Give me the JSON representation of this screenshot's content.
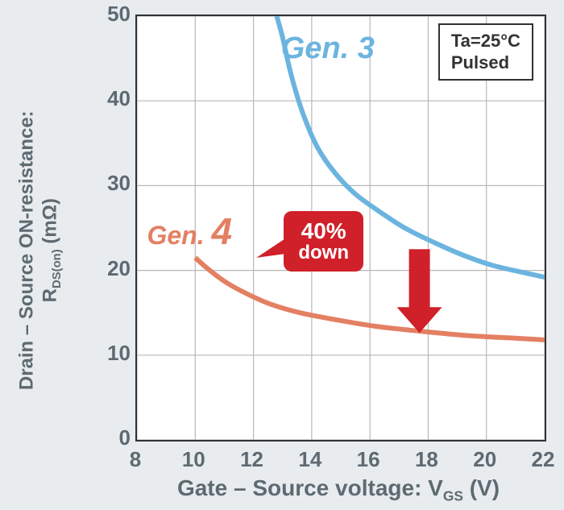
{
  "chart": {
    "type": "line",
    "background_color": "#ffffff",
    "page_background": "#e8ecef",
    "border_color": "#323232",
    "grid_color": "#b8b8b8",
    "xlim": [
      8,
      22
    ],
    "ylim": [
      0,
      50
    ],
    "xtick_step": 2,
    "ytick_step": 10,
    "xticks": [
      8,
      10,
      12,
      14,
      16,
      18,
      20,
      22
    ],
    "yticks": [
      0,
      10,
      20,
      30,
      40,
      50
    ],
    "xlabel_prefix": "Gate – Source voltage: V",
    "xlabel_sub": "GS",
    "xlabel_suffix": " (V)",
    "ylabel_line1": "Drain – Source ON-resistance:",
    "ylabel_prefix": "R",
    "ylabel_sub": "DS(on)",
    "ylabel_suffix": " (mΩ)",
    "label_fontsize": 26,
    "label_color": "#5e6a72",
    "line_width": 6,
    "series": {
      "gen3": {
        "label": "Gen. 3",
        "color": "#6bb4df",
        "fontsize": 38,
        "points": [
          [
            12.8,
            50.0
          ],
          [
            13.0,
            47.5
          ],
          [
            13.3,
            43.0
          ],
          [
            13.7,
            38.5
          ],
          [
            14.2,
            34.5
          ],
          [
            14.8,
            31.5
          ],
          [
            15.5,
            29.0
          ],
          [
            16.3,
            27.0
          ],
          [
            17.2,
            25.0
          ],
          [
            18.2,
            23.3
          ],
          [
            19.2,
            21.8
          ],
          [
            20.2,
            20.6
          ],
          [
            21.2,
            19.8
          ],
          [
            22.0,
            19.2
          ]
        ]
      },
      "gen4": {
        "label_a": "Gen. ",
        "label_b": "4",
        "color": "#e38063",
        "fontsize_a": 32,
        "fontsize_b": 46,
        "points": [
          [
            10.0,
            21.5
          ],
          [
            10.5,
            20.0
          ],
          [
            11.1,
            18.5
          ],
          [
            11.8,
            17.2
          ],
          [
            12.6,
            16.0
          ],
          [
            13.6,
            15.0
          ],
          [
            14.8,
            14.2
          ],
          [
            16.2,
            13.4
          ],
          [
            17.8,
            12.8
          ],
          [
            19.4,
            12.3
          ],
          [
            21.0,
            12.0
          ],
          [
            22.0,
            11.8
          ]
        ]
      }
    },
    "legend": {
      "line1": "Ta=25°C",
      "line2": "Pulsed",
      "border_color": "#323232",
      "font_size": 22
    },
    "callout": {
      "text1": "40%",
      "text2": "down",
      "bg_color": "#d0202a",
      "text_color": "#ffffff",
      "font_size": 28,
      "arrow_color": "#d0202a"
    }
  }
}
